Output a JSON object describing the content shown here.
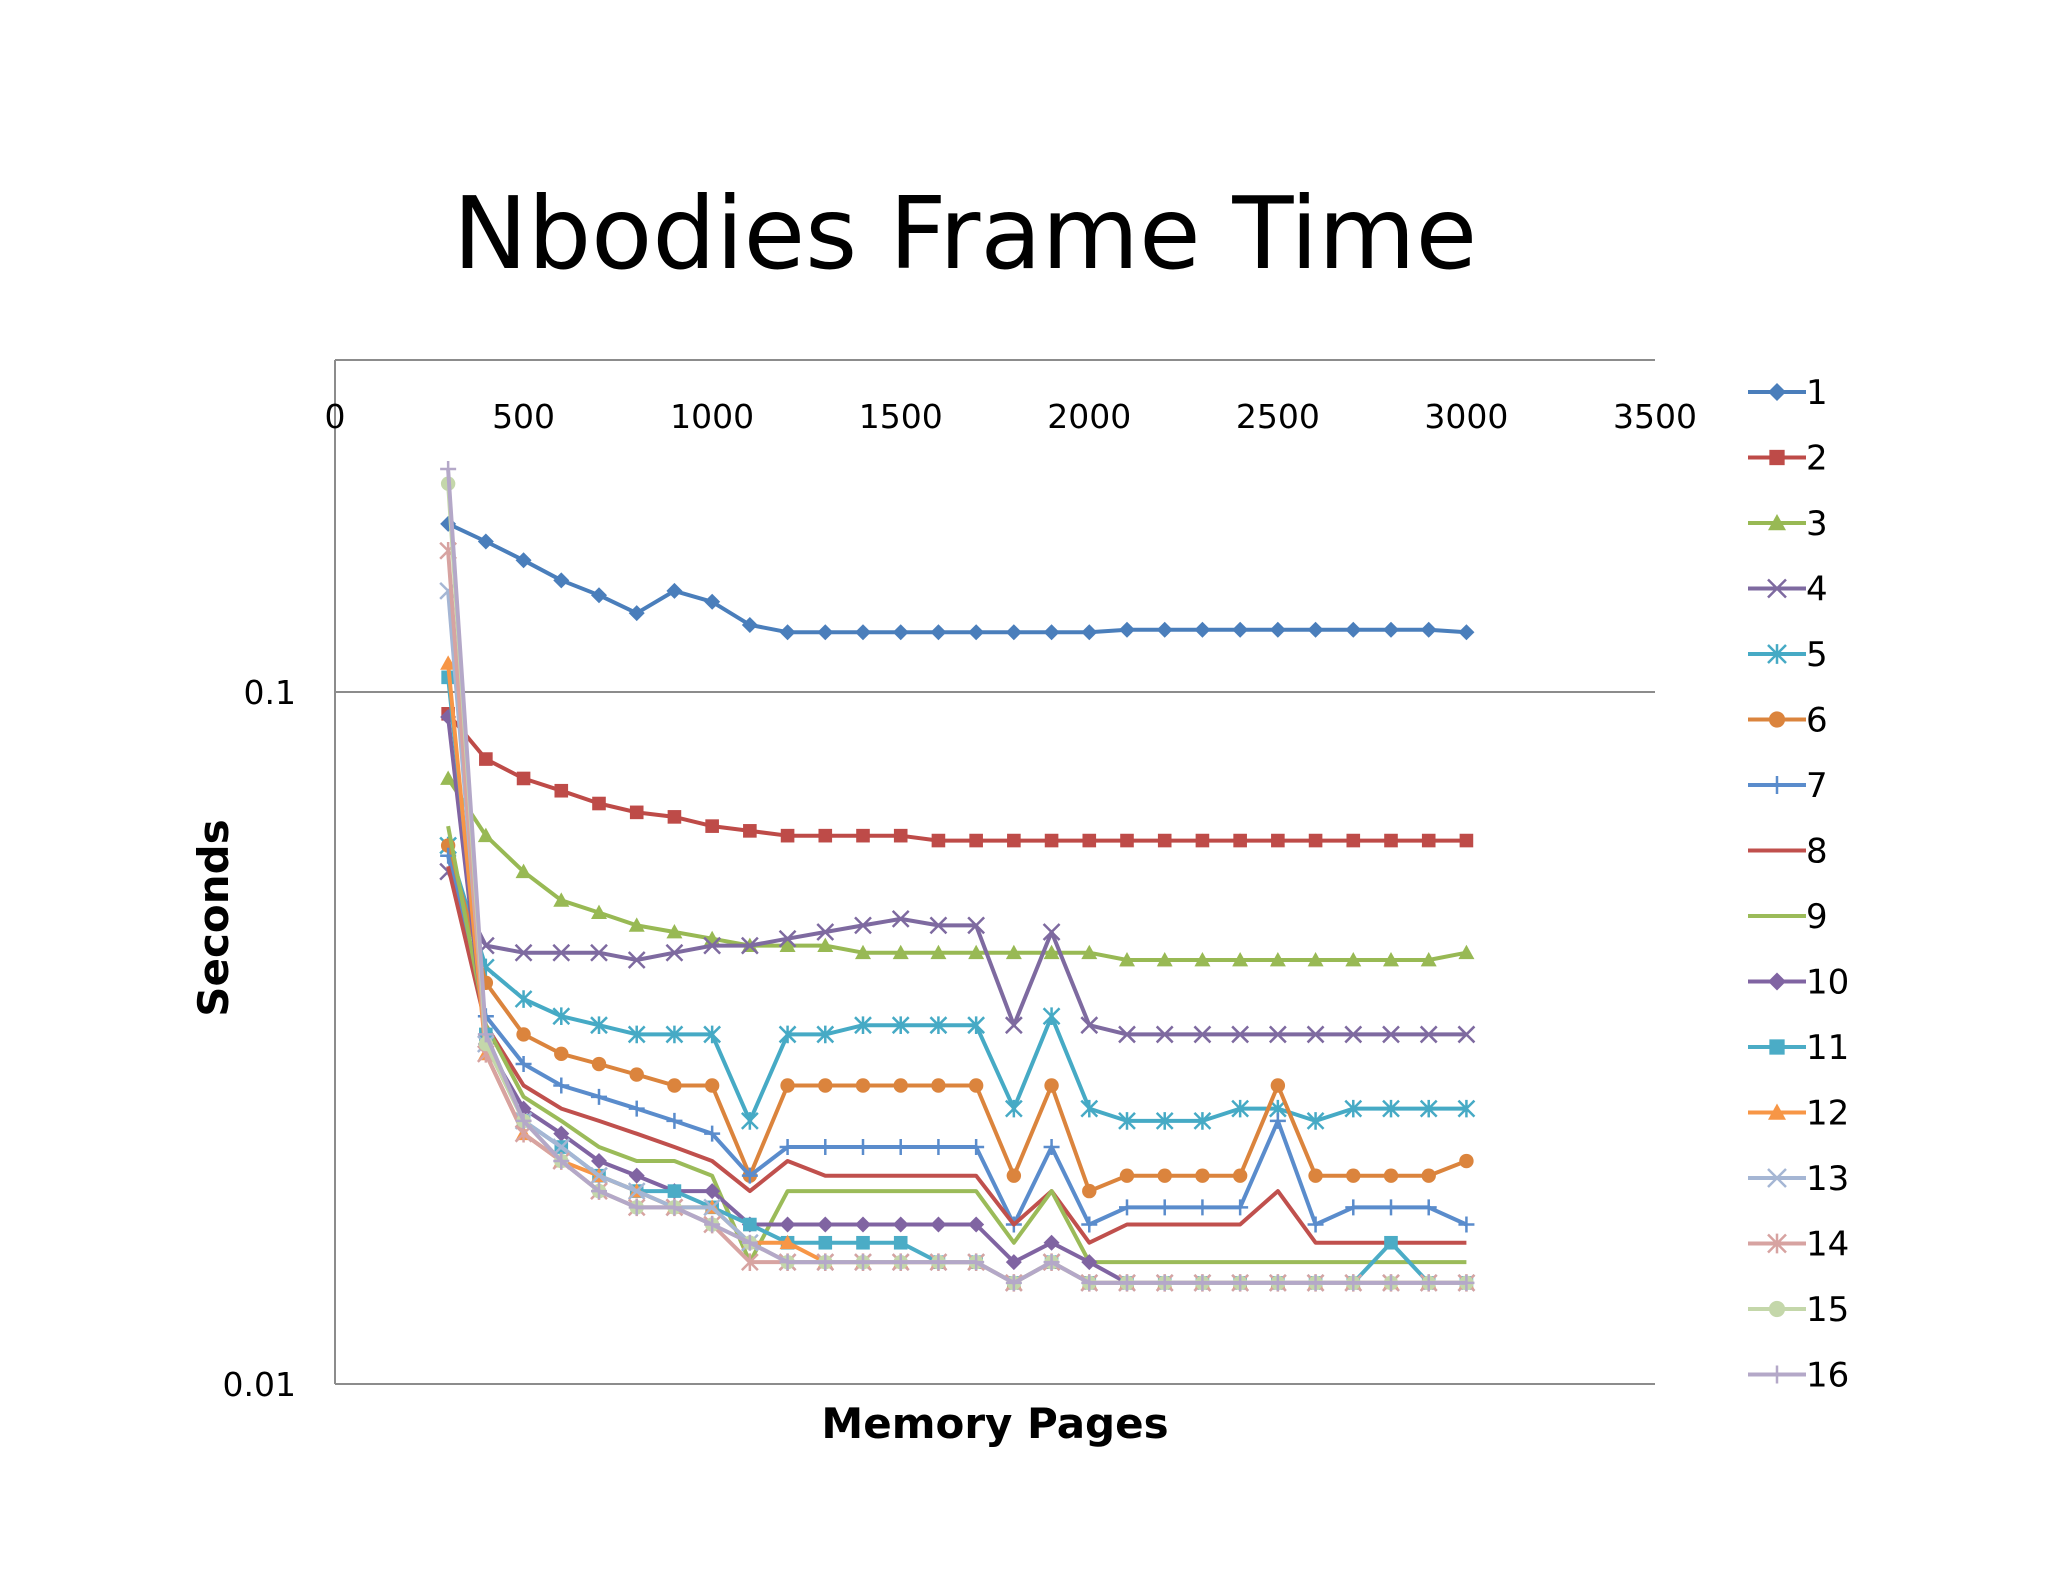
{
  "chart_data": {
    "type": "line",
    "title": "Nbodies Frame Time",
    "xlabel": "Memory Pages",
    "ylabel": "Seconds",
    "xlim": [
      0,
      3500
    ],
    "ylim": [
      0.01,
      0.3
    ],
    "y_scale": "log",
    "x_axis_position": "top",
    "x_ticks": [
      "0",
      "500",
      "1000",
      "1500",
      "2000",
      "2500",
      "3000",
      "3500"
    ],
    "y_ticks": [
      "0.1",
      "0.01"
    ],
    "grid": "horizontal",
    "legend_position": "right",
    "x": [
      300,
      400,
      500,
      600,
      700,
      800,
      900,
      1000,
      1100,
      1200,
      1300,
      1400,
      1500,
      1600,
      1700,
      1800,
      1900,
      2000,
      2100,
      2200,
      2300,
      2400,
      2500,
      2600,
      2700,
      2800,
      2900,
      3000
    ],
    "series": [
      {
        "name": "1",
        "color": "#4a7ebb",
        "marker": "diamond",
        "values": [
          0.175,
          0.165,
          0.155,
          0.145,
          0.138,
          0.13,
          0.14,
          0.135,
          0.125,
          0.122,
          0.122,
          0.122,
          0.122,
          0.122,
          0.122,
          0.122,
          0.122,
          0.122,
          0.123,
          0.123,
          0.123,
          0.123,
          0.123,
          0.123,
          0.123,
          0.123,
          0.123,
          0.122
        ]
      },
      {
        "name": "2",
        "color": "#be4b48",
        "marker": "square",
        "values": [
          0.093,
          0.08,
          0.075,
          0.072,
          0.069,
          0.067,
          0.066,
          0.064,
          0.063,
          0.062,
          0.062,
          0.062,
          0.062,
          0.061,
          0.061,
          0.061,
          0.061,
          0.061,
          0.061,
          0.061,
          0.061,
          0.061,
          0.061,
          0.061,
          0.061,
          0.061,
          0.061,
          0.061
        ]
      },
      {
        "name": "3",
        "color": "#98b954",
        "marker": "triangle",
        "values": [
          0.075,
          0.062,
          0.055,
          0.05,
          0.048,
          0.046,
          0.045,
          0.044,
          0.043,
          0.043,
          0.043,
          0.042,
          0.042,
          0.042,
          0.042,
          0.042,
          0.042,
          0.042,
          0.041,
          0.041,
          0.041,
          0.041,
          0.041,
          0.041,
          0.041,
          0.041,
          0.041,
          0.042
        ]
      },
      {
        "name": "4",
        "color": "#7e6aa0",
        "marker": "x",
        "values": [
          0.055,
          0.043,
          0.042,
          0.042,
          0.042,
          0.041,
          0.042,
          0.043,
          0.043,
          0.044,
          0.045,
          0.046,
          0.047,
          0.046,
          0.046,
          0.033,
          0.045,
          0.033,
          0.032,
          0.032,
          0.032,
          0.032,
          0.032,
          0.032,
          0.032,
          0.032,
          0.032,
          0.032
        ]
      },
      {
        "name": "5",
        "color": "#46aac5",
        "marker": "star",
        "values": [
          0.06,
          0.04,
          0.036,
          0.034,
          0.033,
          0.032,
          0.032,
          0.032,
          0.024,
          0.032,
          0.032,
          0.033,
          0.033,
          0.033,
          0.033,
          0.025,
          0.034,
          0.025,
          0.024,
          0.024,
          0.024,
          0.025,
          0.025,
          0.024,
          0.025,
          0.025,
          0.025,
          0.025
        ]
      },
      {
        "name": "6",
        "color": "#db843d",
        "marker": "circle",
        "values": [
          0.06,
          0.038,
          0.032,
          0.03,
          0.029,
          0.028,
          0.027,
          0.027,
          0.02,
          0.027,
          0.027,
          0.027,
          0.027,
          0.027,
          0.027,
          0.02,
          0.027,
          0.019,
          0.02,
          0.02,
          0.02,
          0.02,
          0.027,
          0.02,
          0.02,
          0.02,
          0.02,
          0.021
        ]
      },
      {
        "name": "7",
        "color": "#5a8ccc",
        "marker": "plus",
        "values": [
          0.058,
          0.034,
          0.029,
          0.027,
          0.026,
          0.025,
          0.024,
          0.023,
          0.02,
          0.022,
          0.022,
          0.022,
          0.022,
          0.022,
          0.022,
          0.017,
          0.022,
          0.017,
          0.018,
          0.018,
          0.018,
          0.018,
          0.024,
          0.017,
          0.018,
          0.018,
          0.018,
          0.017
        ]
      },
      {
        "name": "8",
        "color": "#c0504d",
        "marker": "none",
        "values": [
          0.056,
          0.033,
          0.027,
          0.025,
          0.024,
          0.023,
          0.022,
          0.021,
          0.019,
          0.021,
          0.02,
          0.02,
          0.02,
          0.02,
          0.02,
          0.017,
          0.019,
          0.016,
          0.017,
          0.017,
          0.017,
          0.017,
          0.019,
          0.016,
          0.016,
          0.016,
          0.016,
          0.016
        ]
      },
      {
        "name": "9",
        "color": "#9bbb59",
        "marker": "none",
        "values": [
          0.064,
          0.033,
          0.026,
          0.024,
          0.022,
          0.021,
          0.021,
          0.02,
          0.015,
          0.019,
          0.019,
          0.019,
          0.019,
          0.019,
          0.019,
          0.016,
          0.019,
          0.015,
          0.015,
          0.015,
          0.015,
          0.015,
          0.015,
          0.015,
          0.015,
          0.015,
          0.015,
          0.015
        ]
      },
      {
        "name": "10",
        "color": "#8064a2",
        "marker": "diamond",
        "values": [
          0.092,
          0.031,
          0.025,
          0.023,
          0.021,
          0.02,
          0.019,
          0.019,
          0.017,
          0.017,
          0.017,
          0.017,
          0.017,
          0.017,
          0.017,
          0.015,
          0.016,
          0.015,
          0.014,
          0.014,
          0.014,
          0.014,
          0.014,
          0.014,
          0.014,
          0.014,
          0.014,
          0.014
        ]
      },
      {
        "name": "11",
        "color": "#4bacc6",
        "marker": "square",
        "values": [
          0.105,
          0.032,
          0.024,
          0.022,
          0.02,
          0.019,
          0.019,
          0.018,
          0.017,
          0.016,
          0.016,
          0.016,
          0.016,
          0.015,
          0.015,
          0.014,
          0.015,
          0.014,
          0.014,
          0.014,
          0.014,
          0.014,
          0.014,
          0.014,
          0.014,
          0.016,
          0.014,
          0.014
        ]
      },
      {
        "name": "12",
        "color": "#f79646",
        "marker": "triangle",
        "values": [
          0.11,
          0.03,
          0.023,
          0.021,
          0.02,
          0.019,
          0.018,
          0.018,
          0.016,
          0.016,
          0.015,
          0.015,
          0.015,
          0.015,
          0.015,
          0.014,
          0.015,
          0.014,
          0.014,
          0.014,
          0.014,
          0.014,
          0.014,
          0.014,
          0.014,
          0.014,
          0.014,
          0.014
        ]
      },
      {
        "name": "13",
        "color": "#a5b6d4",
        "marker": "x",
        "values": [
          0.14,
          0.031,
          0.024,
          0.022,
          0.02,
          0.019,
          0.018,
          0.018,
          0.016,
          0.015,
          0.015,
          0.015,
          0.015,
          0.015,
          0.015,
          0.014,
          0.015,
          0.014,
          0.014,
          0.014,
          0.014,
          0.014,
          0.014,
          0.014,
          0.014,
          0.014,
          0.014,
          0.014
        ]
      },
      {
        "name": "14",
        "color": "#d7a3a1",
        "marker": "star",
        "values": [
          0.16,
          0.03,
          0.023,
          0.021,
          0.019,
          0.018,
          0.018,
          0.017,
          0.015,
          0.015,
          0.015,
          0.015,
          0.015,
          0.015,
          0.015,
          0.014,
          0.015,
          0.014,
          0.014,
          0.014,
          0.014,
          0.014,
          0.014,
          0.014,
          0.014,
          0.014,
          0.014,
          0.014
        ]
      },
      {
        "name": "15",
        "color": "#c4d7aa",
        "marker": "circle",
        "values": [
          0.2,
          0.031,
          0.024,
          0.021,
          0.019,
          0.018,
          0.018,
          0.017,
          0.016,
          0.015,
          0.015,
          0.015,
          0.015,
          0.015,
          0.015,
          0.014,
          0.015,
          0.014,
          0.014,
          0.014,
          0.014,
          0.014,
          0.014,
          0.014,
          0.014,
          0.014,
          0.014,
          0.014
        ]
      },
      {
        "name": "16",
        "color": "#b4a8c8",
        "marker": "plus",
        "values": [
          0.21,
          0.032,
          0.024,
          0.021,
          0.019,
          0.018,
          0.018,
          0.017,
          0.016,
          0.015,
          0.015,
          0.015,
          0.015,
          0.015,
          0.015,
          0.014,
          0.015,
          0.014,
          0.014,
          0.014,
          0.014,
          0.014,
          0.014,
          0.014,
          0.014,
          0.014,
          0.014,
          0.014
        ]
      }
    ]
  }
}
